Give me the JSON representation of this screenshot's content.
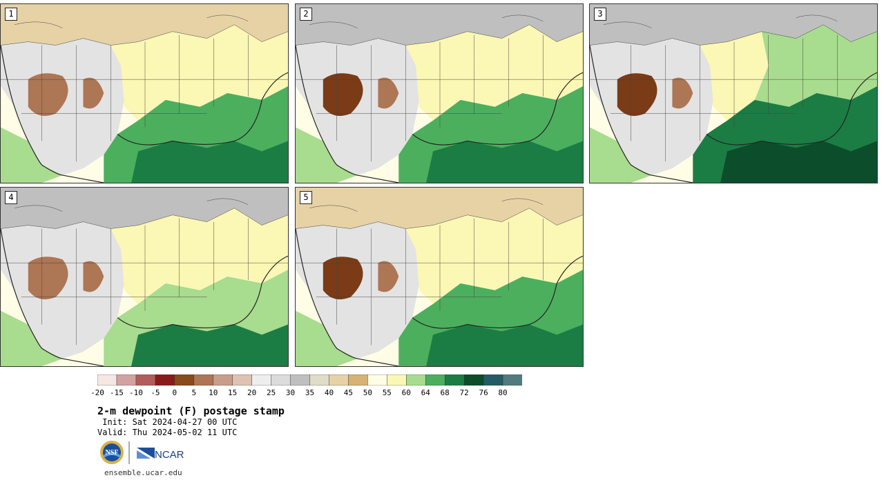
{
  "panels": [
    {
      "label": "1"
    },
    {
      "label": "2"
    },
    {
      "label": "3"
    },
    {
      "label": "4"
    },
    {
      "label": "5"
    }
  ],
  "colorbar": {
    "ticks": [
      "-20",
      "-15",
      "-10",
      "-5",
      "0",
      "5",
      "10",
      "15",
      "20",
      "25",
      "30",
      "35",
      "40",
      "45",
      "50",
      "55",
      "60",
      "64",
      "68",
      "72",
      "76",
      "80"
    ],
    "colors": [
      "#f6e6e4",
      "#d4a1a1",
      "#b35c5c",
      "#8a1a1a",
      "#8a4a1b",
      "#ad7655",
      "#c79e87",
      "#dfc2b1",
      "#eeeeee",
      "#dcdcdc",
      "#bfbfbf",
      "#e0dcc8",
      "#e6d2a5",
      "#d6b374",
      "#fffde6",
      "#fbf7b4",
      "#a8dc8e",
      "#4caf5e",
      "#1b7d44",
      "#0c4d2b",
      "#255b66",
      "#517b7e"
    ]
  },
  "title": "2-m dewpoint (F) postage stamp",
  "init": " Init: Sat 2024-04-27 00 UTC",
  "valid": "Valid: Thu 2024-05-02 11 UTC",
  "logos": {
    "nsf": "NSF",
    "ncar": "NCAR"
  },
  "url": "ensemble.ucar.edu",
  "map_colors": {
    "ocean_warm": "#fffde6",
    "cool_dry": "#d6b374",
    "tan": "#e6d2a5",
    "gray": "#bfbfbf",
    "light_gray": "#e3e3e3",
    "brown": "#ad7655",
    "dark_brown": "#7a3b16",
    "pale_yellow": "#fbf7b4",
    "light_green": "#a8dc8e",
    "green": "#4caf5e",
    "dark_green": "#1b7d44",
    "darkest_green": "#0c4d2b",
    "borders": "#222222"
  }
}
